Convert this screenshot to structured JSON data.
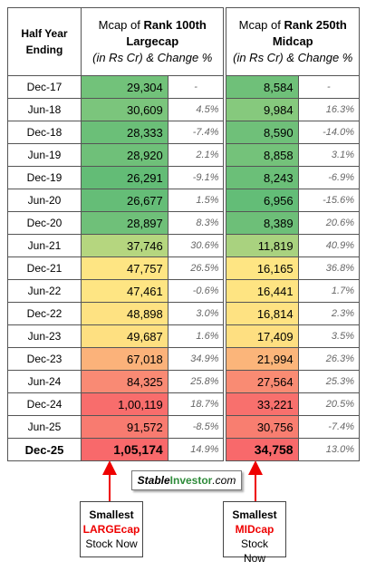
{
  "header": {
    "period": "Half Year Ending",
    "largecap": {
      "prefix": "Mcap of ",
      "bold": "Rank 100th Largecap",
      "units": "(in Rs Cr)",
      "change": "& Change %"
    },
    "midcap": {
      "prefix": "Mcap of ",
      "bold": "Rank 250th Midcap",
      "units": "(in Rs Cr)",
      "change": "& Change %"
    }
  },
  "rows": [
    {
      "period": "Dec-17",
      "large": {
        "value": "29,304",
        "change": "-",
        "color": "#72c27a"
      },
      "mid": {
        "value": "8,584",
        "change": "-",
        "color": "#6fc079"
      }
    },
    {
      "period": "Jun-18",
      "large": {
        "value": "30,609",
        "change": "4.5%",
        "color": "#7bc57c"
      },
      "mid": {
        "value": "9,984",
        "change": "16.3%",
        "color": "#86c97d"
      }
    },
    {
      "period": "Dec-18",
      "large": {
        "value": "28,333",
        "change": "-7.4%",
        "color": "#6bbf78"
      },
      "mid": {
        "value": "8,590",
        "change": "-14.0%",
        "color": "#6fc079"
      }
    },
    {
      "period": "Jun-19",
      "large": {
        "value": "28,920",
        "change": "2.1%",
        "color": "#6fc079"
      },
      "mid": {
        "value": "8,858",
        "change": "3.1%",
        "color": "#74c27a"
      }
    },
    {
      "period": "Dec-19",
      "large": {
        "value": "26,291",
        "change": "-9.1%",
        "color": "#63bc76"
      },
      "mid": {
        "value": "8,243",
        "change": "-6.9%",
        "color": "#6bbf78"
      }
    },
    {
      "period": "Jun-20",
      "large": {
        "value": "26,677",
        "change": "1.5%",
        "color": "#65bd77"
      },
      "mid": {
        "value": "6,956",
        "change": "-15.6%",
        "color": "#63bd77"
      }
    },
    {
      "period": "Dec-20",
      "large": {
        "value": "28,897",
        "change": "8.3%",
        "color": "#6fc079"
      },
      "mid": {
        "value": "8,389",
        "change": "20.6%",
        "color": "#6dbf78"
      }
    },
    {
      "period": "Jun-21",
      "large": {
        "value": "37,746",
        "change": "30.6%",
        "color": "#b5d67f"
      },
      "mid": {
        "value": "11,819",
        "change": "40.9%",
        "color": "#a9d27f"
      }
    },
    {
      "period": "Dec-21",
      "large": {
        "value": "47,757",
        "change": "26.5%",
        "color": "#fee583"
      },
      "mid": {
        "value": "16,165",
        "change": "36.8%",
        "color": "#fee583"
      }
    },
    {
      "period": "Jun-22",
      "large": {
        "value": "47,461",
        "change": "-0.6%",
        "color": "#fee583"
      },
      "mid": {
        "value": "16,441",
        "change": "1.7%",
        "color": "#fee482"
      }
    },
    {
      "period": "Dec-22",
      "large": {
        "value": "48,898",
        "change": "3.0%",
        "color": "#fee282"
      },
      "mid": {
        "value": "16,814",
        "change": "2.3%",
        "color": "#fee282"
      }
    },
    {
      "period": "Jun-23",
      "large": {
        "value": "49,687",
        "change": "1.6%",
        "color": "#fee081"
      },
      "mid": {
        "value": "17,409",
        "change": "3.5%",
        "color": "#fedf81"
      }
    },
    {
      "period": "Dec-23",
      "large": {
        "value": "67,018",
        "change": "34.9%",
        "color": "#fbb27a"
      },
      "mid": {
        "value": "21,994",
        "change": "26.3%",
        "color": "#fbb57a"
      }
    },
    {
      "period": "Jun-24",
      "large": {
        "value": "84,325",
        "change": "25.8%",
        "color": "#f98a74"
      },
      "mid": {
        "value": "27,564",
        "change": "25.3%",
        "color": "#f98b73"
      }
    },
    {
      "period": "Dec-24",
      "large": {
        "value": "1,00,119",
        "change": "18.7%",
        "color": "#f86d6c"
      },
      "mid": {
        "value": "33,221",
        "change": "20.5%",
        "color": "#f8706d"
      }
    },
    {
      "period": "Jun-25",
      "large": {
        "value": "91,572",
        "change": "-8.5%",
        "color": "#f87b70"
      },
      "mid": {
        "value": "30,756",
        "change": "-7.4%",
        "color": "#f87e70"
      }
    },
    {
      "period": "Dec-25",
      "large": {
        "value": "1,05,174",
        "change": "14.9%",
        "color": "#f8696b"
      },
      "mid": {
        "value": "34,758",
        "change": "13.0%",
        "color": "#f8696b"
      },
      "emphasis": true
    }
  ],
  "logo": {
    "part1": "Stable",
    "part2": "Investor",
    "part3": ".com"
  },
  "callouts": [
    {
      "line1": "Smallest",
      "highlight": "LARGEcap",
      "line3": "Stock Now"
    },
    {
      "line1": "Smallest",
      "highlight": "MIDcap",
      "rest": "Stock",
      "line3": "Now"
    }
  ]
}
